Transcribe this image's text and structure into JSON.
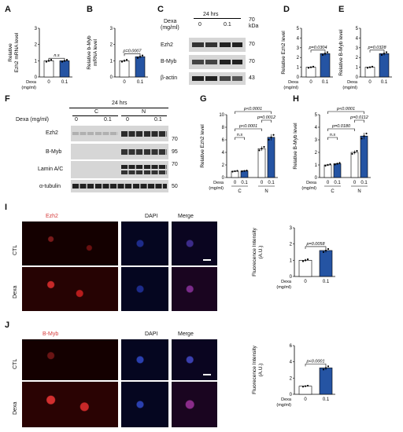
{
  "panels": {
    "A": {
      "label": "A",
      "ylabel_line1": "Relative",
      "ylabel_gene": "Ezh2",
      "ylabel_line2": "mRNA level",
      "sig": "n.s",
      "dexa_label": "Dexa",
      "unit": "(mg/ml)",
      "x_ticks": [
        "0",
        "0.1"
      ]
    },
    "B": {
      "label": "B",
      "ylabel_line1": "Relative",
      "ylabel_gene": "b-Myb",
      "ylabel_line2": "mRNA level",
      "sig": "p=0.0007",
      "x_ticks": [
        "0",
        "0.1"
      ]
    },
    "C": {
      "label": "C",
      "time": "24 hrs",
      "dexa_label": "Dexa",
      "unit": "(mg/ml)",
      "lanes": [
        "0",
        "0.1"
      ],
      "kda": "kDa",
      "bands": [
        {
          "name": "Ezh2",
          "mw": "70"
        },
        {
          "name": "B-Myb",
          "mw": "70"
        },
        {
          "name": "β-actin",
          "mw": "43"
        }
      ],
      "top_mw": "70"
    },
    "D": {
      "label": "D",
      "ylabel": "Relative Ezh2 level",
      "sig": "p=0.0304",
      "dexa_label": "Dexa",
      "unit": "(mg/ml)",
      "x_ticks": [
        "0",
        "0.1"
      ]
    },
    "E": {
      "label": "E",
      "ylabel": "Relative B-Myb level",
      "sig": "p=0.0328",
      "dexa_label": "Dexa",
      "unit": "(mg/ml)",
      "x_ticks": [
        "0",
        "0.1"
      ]
    },
    "F": {
      "label": "F",
      "time": "24 hrs",
      "dexa_label": "Dexa (mg/ml)",
      "groups": [
        "C",
        "N"
      ],
      "lanes": [
        "0",
        "0.1",
        "0",
        "0.1"
      ],
      "bands": [
        {
          "name": "Ezh2",
          "mw": "70"
        },
        {
          "name": "B-Myb",
          "mw": "95"
        },
        {
          "name": "Lamin A/C",
          "mw": "70"
        },
        {
          "name": "α-tubulin",
          "mw": "50"
        }
      ]
    },
    "G": {
      "label": "G",
      "ylabel": "Relative Ezh2 level",
      "sigs": [
        "p<0.0001",
        "p=0.0012",
        "p<0.0001",
        "n.s"
      ],
      "dexa_label": "Dexa",
      "unit": "(mg/ml)",
      "x_ticks": [
        "0",
        "0.1",
        "0",
        "0.1"
      ],
      "groups": [
        "C",
        "N"
      ]
    },
    "H": {
      "label": "H",
      "ylabel": "Relative B-Myb level",
      "sigs": [
        "p<0.0001",
        "p=0.0112",
        "p=0.0180",
        "n.s"
      ],
      "dexa_label": "Dexa",
      "unit": "(mg/ml)",
      "x_ticks": [
        "0",
        "0.1",
        "0",
        "0.1"
      ],
      "groups": [
        "C",
        "N"
      ]
    },
    "I": {
      "label": "I",
      "stain": "Ezh2",
      "dapi": "DAPI",
      "merge": "Merge",
      "rows": [
        "CTL",
        "Dexa"
      ],
      "ylabel": "Fluorecence Intensity",
      "yunit": "(A.U.)",
      "sig": "p=0.0058",
      "dexa_label": "Dexa",
      "unit": "(mg/ml)",
      "x_ticks": [
        "0",
        "0.1"
      ]
    },
    "J": {
      "label": "J",
      "stain": "B-Myb",
      "dapi": "DAPI",
      "merge": "Merge",
      "rows": [
        "CTL",
        "Dexa"
      ],
      "ylabel": "Fluorecence Intensity",
      "yunit": "(A.U.)",
      "sig": "p<0.0001",
      "dexa_label": "Dexa",
      "unit": "(mg/ml)",
      "x_ticks": [
        "0",
        "0.1"
      ]
    }
  },
  "chart_data": [
    {
      "id": "A",
      "type": "bar",
      "categories": [
        "0",
        "0.1"
      ],
      "values": [
        1.0,
        1.0
      ],
      "ylim": [
        0,
        3
      ],
      "yticks": [
        "0",
        "1",
        "2",
        "3"
      ]
    },
    {
      "id": "B",
      "type": "bar",
      "categories": [
        "0",
        "0.1"
      ],
      "values": [
        1.0,
        1.25
      ],
      "ylim": [
        0,
        3
      ],
      "yticks": [
        "0",
        "1",
        "2",
        "3"
      ]
    },
    {
      "id": "D",
      "type": "bar",
      "categories": [
        "0",
        "0.1"
      ],
      "values": [
        1.0,
        2.4
      ],
      "ylim": [
        0,
        5
      ],
      "yticks": [
        "0",
        "1",
        "2",
        "3",
        "4",
        "5"
      ]
    },
    {
      "id": "E",
      "type": "bar",
      "categories": [
        "0",
        "0.1"
      ],
      "values": [
        1.0,
        2.4
      ],
      "ylim": [
        0,
        5
      ],
      "yticks": [
        "0",
        "1",
        "2",
        "3",
        "4",
        "5"
      ]
    },
    {
      "id": "G",
      "type": "bar",
      "categories": [
        "0",
        "0.1",
        "0",
        "0.1"
      ],
      "values": [
        1.0,
        1.05,
        4.6,
        6.4
      ],
      "ylim": [
        0,
        10
      ],
      "yticks": [
        "0",
        "2",
        "4",
        "6",
        "8",
        "10"
      ]
    },
    {
      "id": "H",
      "type": "bar",
      "categories": [
        "0",
        "0.1",
        "0",
        "0.1"
      ],
      "values": [
        1.0,
        1.1,
        2.0,
        3.3
      ],
      "ylim": [
        0,
        5
      ],
      "yticks": [
        "0",
        "1",
        "2",
        "3",
        "4",
        "5"
      ]
    },
    {
      "id": "I",
      "type": "bar",
      "categories": [
        "0",
        "0.1"
      ],
      "values": [
        1.0,
        1.6
      ],
      "ylim": [
        0,
        3
      ],
      "yticks": [
        "0",
        "1",
        "2",
        "3"
      ]
    },
    {
      "id": "J",
      "type": "bar",
      "categories": [
        "0",
        "0.1"
      ],
      "values": [
        1.0,
        3.25
      ],
      "ylim": [
        0,
        6
      ],
      "yticks": [
        "0",
        "2",
        "4",
        "6"
      ]
    }
  ],
  "colors": {
    "bar_fill": "#2554a3",
    "bar_empty": "#ffffff",
    "blot_bg": "#d6d6d6",
    "band": "#2a2a2a",
    "micro_bg": "#000000",
    "red_stain": "#d63b3b",
    "blue_stain": "#3a4fc9"
  }
}
